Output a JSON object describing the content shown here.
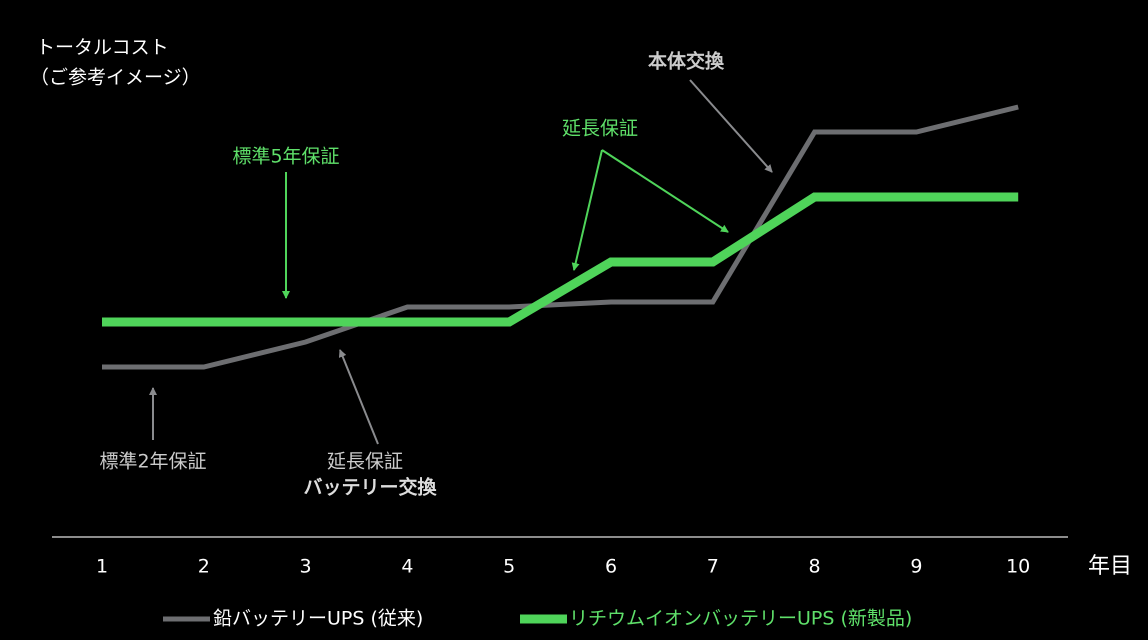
{
  "chart_data": {
    "type": "line",
    "y_label": [
      "トータルコスト",
      "（ご参考イメージ）"
    ],
    "x_label": "年目",
    "categories": [
      "1",
      "2",
      "3",
      "4",
      "5",
      "6",
      "7",
      "8",
      "9",
      "10"
    ],
    "series": [
      {
        "name": "鉛バッテリーUPS (従来)",
        "color": "#6d6e71",
        "values": [
          34,
          34,
          39,
          46,
          46,
          47,
          47,
          81,
          81,
          86
        ]
      },
      {
        "name": "リチウムイオンバッテリーUPS (新製品)",
        "color": "#4fd45a",
        "values": [
          43,
          43,
          43,
          43,
          43,
          55,
          55,
          68,
          68,
          68
        ]
      }
    ],
    "ylim": [
      0,
      100
    ],
    "annotations": [
      "標準5年保証",
      "延長保証",
      "本体交換",
      "標準2年保証",
      "延長保証",
      "バッテリー交換"
    ]
  }
}
